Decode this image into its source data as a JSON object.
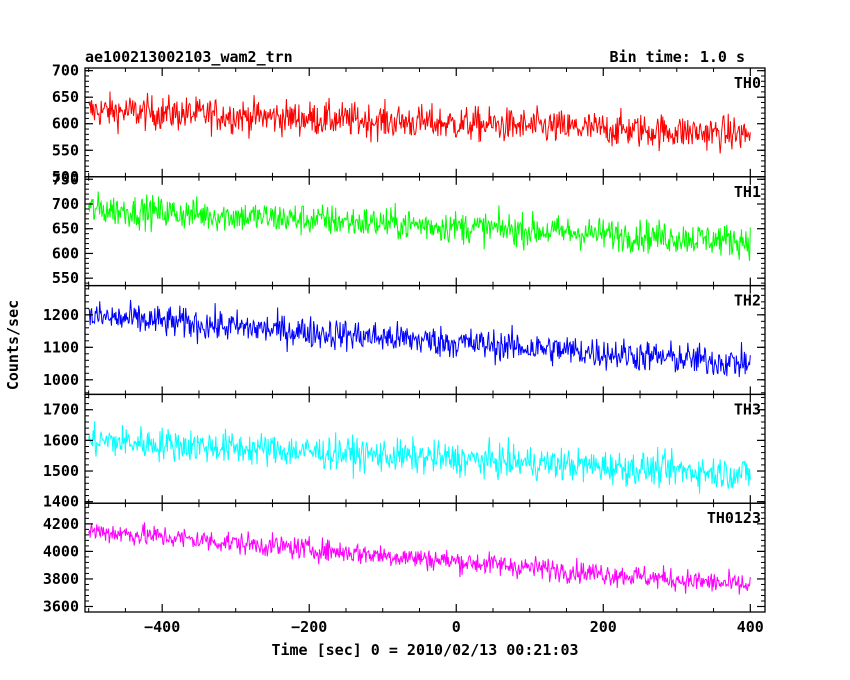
{
  "header": {
    "title": "ae100213002103_wam2_trn",
    "bin_time": "Bin time: 1.0 s"
  },
  "chart_data": {
    "type": "line",
    "ylabel": "Counts/sec",
    "xlabel": "Time [sec] 0 = 2010/02/13 00:21:03",
    "xlim": [
      -505,
      420
    ],
    "x_step": 1,
    "x_ticks": [
      -400,
      -200,
      0,
      200,
      400
    ],
    "panels": [
      {
        "name": "TH0",
        "color": "#ff0000",
        "ylim": [
          500,
          705
        ],
        "y_ticks": [
          500,
          550,
          600,
          650,
          700
        ],
        "x_range": [
          -500,
          400
        ],
        "trend": [
          625,
          580
        ],
        "noise": 30
      },
      {
        "name": "TH1",
        "color": "#00ff00",
        "ylim": [
          535,
          755
        ],
        "y_ticks": [
          550,
          600,
          650,
          700,
          750
        ],
        "x_range": [
          -500,
          400
        ],
        "trend": [
          690,
          625
        ],
        "noise": 30
      },
      {
        "name": "TH2",
        "color": "#0000ff",
        "ylim": [
          955,
          1290
        ],
        "y_ticks": [
          1000,
          1100,
          1200
        ],
        "x_range": [
          -500,
          400
        ],
        "trend": [
          1195,
          1050
        ],
        "noise": 45
      },
      {
        "name": "TH3",
        "color": "#00ffff",
        "ylim": [
          1395,
          1750
        ],
        "y_ticks": [
          1400,
          1500,
          1600,
          1700
        ],
        "x_range": [
          -500,
          400
        ],
        "trend": [
          1600,
          1490
        ],
        "noise": 50
      },
      {
        "name": "TH0123",
        "color": "#ff00ff",
        "ylim": [
          3560,
          4350
        ],
        "y_ticks": [
          3600,
          3800,
          4000,
          4200
        ],
        "x_range": [
          -500,
          400
        ],
        "trend": [
          4150,
          3750
        ],
        "noise": 75
      }
    ]
  }
}
